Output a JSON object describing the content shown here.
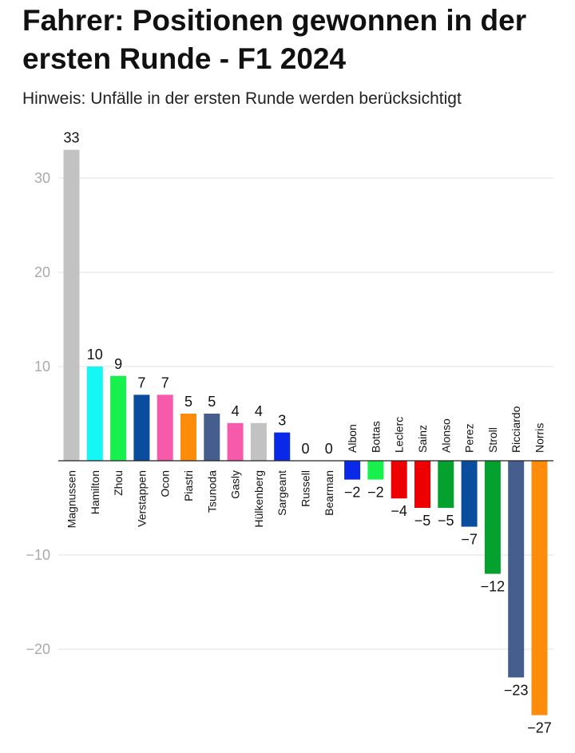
{
  "title": "Fahrer: Positionen gewonnen in der ersten Runde - F1 2024",
  "subtitle": "Hinweis: Unfälle in der ersten Runde werden berücksichtigt",
  "chart_data": {
    "type": "bar",
    "title": "Fahrer: Positionen gewonnen in der ersten Runde - F1 2024",
    "subtitle": "Hinweis: Unfälle in der ersten Runde werden berücksichtigt",
    "xlabel": "",
    "ylabel": "",
    "ylim": [
      -27,
      33
    ],
    "yticks": [
      -20,
      -10,
      10,
      20,
      30
    ],
    "grid": true,
    "legend": "none",
    "categories": [
      "Magnussen",
      "Hamilton",
      "Zhou",
      "Verstappen",
      "Ocon",
      "Piastri",
      "Tsunoda",
      "Gasly",
      "Hülkenberg",
      "Sargeant",
      "Russell",
      "Bearman",
      "Albon",
      "Bottas",
      "Leclerc",
      "Sainz",
      "Alonso",
      "Perez",
      "Stroll",
      "Ricciardo",
      "Norris"
    ],
    "values": [
      33,
      10,
      9,
      7,
      7,
      5,
      5,
      4,
      4,
      3,
      0,
      0,
      -2,
      -2,
      -4,
      -5,
      -5,
      -7,
      -12,
      -23,
      -27
    ],
    "colors": [
      "#c2c2c2",
      "#14f7f5",
      "#18f04d",
      "#0a4c9e",
      "#f85aab",
      "#fc8c0a",
      "#455e8e",
      "#f85aab",
      "#c2c2c2",
      "#0a28e8",
      "#1e7ad6",
      "#e8002d",
      "#0a28e8",
      "#18f04d",
      "#ee0000",
      "#ee0000",
      "#04a12f",
      "#0a4c9e",
      "#04a12f",
      "#455e8e",
      "#fc8c0a"
    ]
  }
}
